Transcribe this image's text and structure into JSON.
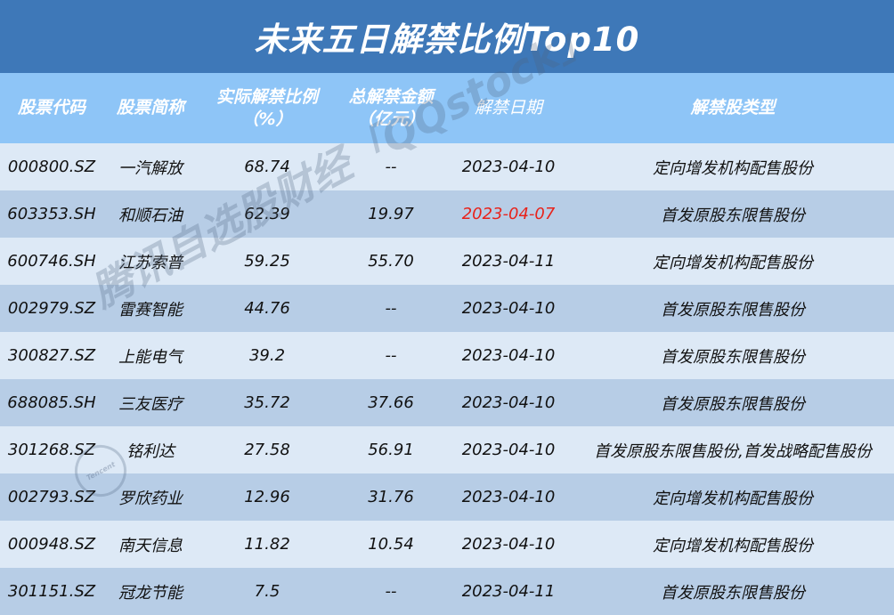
{
  "title": "未来五日解禁比例Top10",
  "headers": [
    {
      "line1": "股票代码",
      "line2": ""
    },
    {
      "line1": "股票简称",
      "line2": ""
    },
    {
      "line1": "实际解禁比例",
      "line2": "（%）"
    },
    {
      "line1": "总解禁金额",
      "line2": "（亿元）"
    },
    {
      "line1": "解禁日期",
      "line2": ""
    },
    {
      "line1": "解禁股类型",
      "line2": ""
    }
  ],
  "rows": [
    {
      "code": "000800.SZ",
      "name": "一汽解放",
      "ratio": "68.74",
      "amount": "--",
      "date": "2023-04-10",
      "type": "定向增发机构配售股份"
    },
    {
      "code": "603353.SH",
      "name": "和顺石油",
      "ratio": "62.39",
      "amount": "19.97",
      "date": "2023-04-07",
      "type": "首发原股东限售股份"
    },
    {
      "code": "600746.SH",
      "name": "江苏索普",
      "ratio": "59.25",
      "amount": "55.70",
      "date": "2023-04-11",
      "type": "定向增发机构配售股份"
    },
    {
      "code": "002979.SZ",
      "name": "雷赛智能",
      "ratio": "44.76",
      "amount": "--",
      "date": "2023-04-10",
      "type": "首发原股东限售股份"
    },
    {
      "code": "300827.SZ",
      "name": "上能电气",
      "ratio": "39.2",
      "amount": "--",
      "date": "2023-04-10",
      "type": "首发原股东限售股份"
    },
    {
      "code": "688085.SH",
      "name": "三友医疗",
      "ratio": "35.72",
      "amount": "37.66",
      "date": "2023-04-10",
      "type": "首发原股东限售股份"
    },
    {
      "code": "301268.SZ",
      "name": "铭利达",
      "ratio": "27.58",
      "amount": "56.91",
      "date": "2023-04-10",
      "type": "首发原股东限售股份,首发战略配售股份"
    },
    {
      "code": "002793.SZ",
      "name": "罗欣药业",
      "ratio": "12.96",
      "amount": "31.76",
      "date": "2023-04-10",
      "type": "定向增发机构配售股份"
    },
    {
      "code": "000948.SZ",
      "name": "南天信息",
      "ratio": "11.82",
      "amount": "10.54",
      "date": "2023-04-10",
      "type": "定向增发机构配售股份"
    },
    {
      "code": "301151.SZ",
      "name": "冠龙节能",
      "ratio": "7.5",
      "amount": "--",
      "date": "2023-04-11",
      "type": "首发原股东限售股份"
    }
  ],
  "highlight_color": "#e8231b",
  "highlighted_date_row": 1,
  "watermark": "腾讯自选股财经「QQstock」",
  "watermark_logo": "Tencent"
}
